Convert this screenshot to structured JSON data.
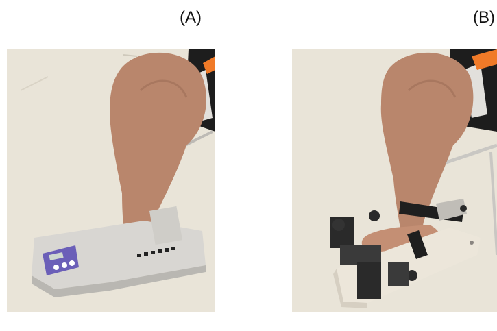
{
  "panels": [
    {
      "label": "(A)"
    },
    {
      "label": "(B)"
    }
  ],
  "colors": {
    "floor": "#e9e4d8",
    "skin": "#b9866c",
    "device_gray": "#d8d6d2",
    "device_dark": "#2a2a2a",
    "display_purple": "#6b5fb8",
    "shorts": "#1d1d1d",
    "shorts_accent": "#f07a28"
  }
}
